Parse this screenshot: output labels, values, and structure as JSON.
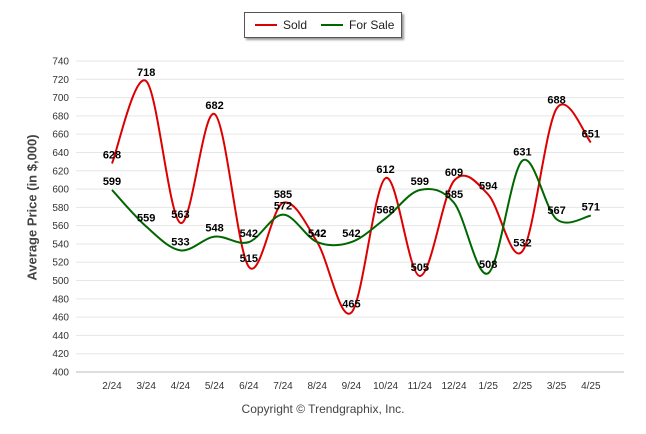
{
  "legend": {
    "sold_label": "Sold",
    "forsale_label": "For Sale"
  },
  "copyright": "Copyright © Trendgraphix, Inc.",
  "chart_data": {
    "type": "line",
    "title": "",
    "xlabel": "",
    "ylabel": "Average Price (in $,000)",
    "ylim": [
      400,
      740
    ],
    "yticks": [
      400,
      420,
      440,
      460,
      480,
      500,
      520,
      540,
      560,
      580,
      600,
      620,
      640,
      660,
      680,
      700,
      720,
      740
    ],
    "grid": true,
    "legend_position": "top-center",
    "categories": [
      "2/24",
      "3/24",
      "4/24",
      "5/24",
      "6/24",
      "7/24",
      "8/24",
      "9/24",
      "10/24",
      "11/24",
      "12/24",
      "1/25",
      "2/25",
      "3/25",
      "4/25"
    ],
    "series": [
      {
        "name": "Sold",
        "color": "#dd0000",
        "values": [
          628,
          718,
          563,
          682,
          515,
          585,
          542,
          465,
          612,
          505,
          609,
          594,
          532,
          688,
          651
        ]
      },
      {
        "name": "For Sale",
        "color": "#006600",
        "values": [
          599,
          559,
          533,
          548,
          542,
          572,
          542,
          542,
          568,
          599,
          585,
          508,
          631,
          567,
          571
        ]
      }
    ]
  }
}
